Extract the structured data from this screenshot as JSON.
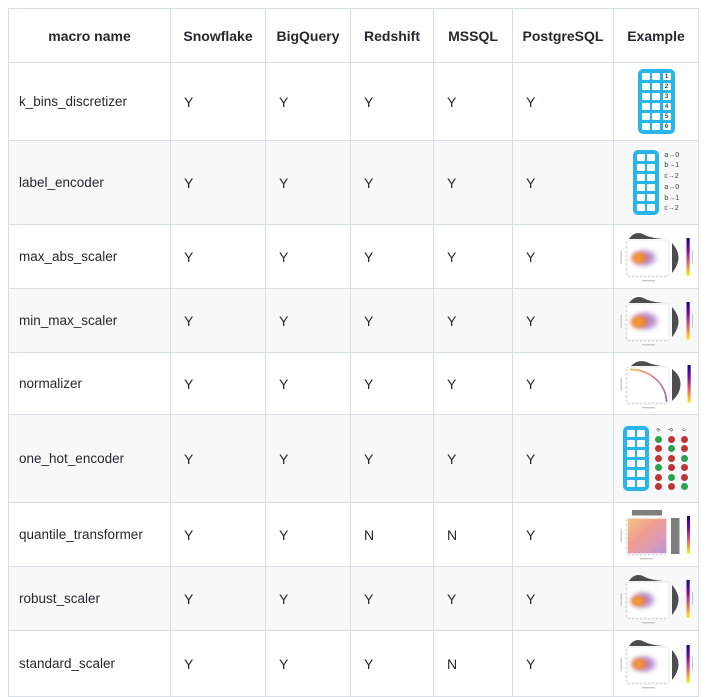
{
  "table": {
    "headers": [
      "macro name",
      "Snowflake",
      "BigQuery",
      "Redshift",
      "MSSQL",
      "PostgreSQL",
      "Example"
    ],
    "rows": [
      {
        "name": "k_bins_discretizer",
        "support": [
          "Y",
          "Y",
          "Y",
          "Y",
          "Y"
        ],
        "example": {
          "kind": "binned-table",
          "grid": {
            "cols": 3,
            "rows": 6,
            "labels": [
              "1",
              "2",
              "3",
              "4",
              "5",
              "6"
            ]
          }
        }
      },
      {
        "name": "label_encoder",
        "support": [
          "Y",
          "Y",
          "Y",
          "Y",
          "Y"
        ],
        "example": {
          "kind": "table-with-label-mapping",
          "grid": {
            "cols": 2,
            "rows": 6
          },
          "mappings": [
            "a→0",
            "b→1",
            "c→2",
            "a→0",
            "b→1",
            "c→2"
          ]
        }
      },
      {
        "name": "max_abs_scaler",
        "support": [
          "Y",
          "Y",
          "Y",
          "Y",
          "Y"
        ],
        "example": {
          "kind": "density-scatter-plot"
        }
      },
      {
        "name": "min_max_scaler",
        "support": [
          "Y",
          "Y",
          "Y",
          "Y",
          "Y"
        ],
        "example": {
          "kind": "density-scatter-plot"
        }
      },
      {
        "name": "normalizer",
        "support": [
          "Y",
          "Y",
          "Y",
          "Y",
          "Y"
        ],
        "example": {
          "kind": "unit-circle-arc-plot"
        }
      },
      {
        "name": "one_hot_encoder",
        "support": [
          "Y",
          "Y",
          "Y",
          "Y",
          "Y"
        ],
        "example": {
          "kind": "table-with-one-hot-dots",
          "grid": {
            "cols": 2,
            "rows": 6
          },
          "dot_headers": [
            "a",
            "b",
            "c"
          ],
          "dot_pattern": [
            [
              1,
              0,
              0
            ],
            [
              0,
              1,
              0
            ],
            [
              0,
              0,
              1
            ],
            [
              1,
              0,
              0
            ],
            [
              0,
              1,
              0
            ],
            [
              0,
              0,
              1
            ]
          ]
        }
      },
      {
        "name": "quantile_transformer",
        "support": [
          "Y",
          "Y",
          "N",
          "N",
          "Y"
        ],
        "example": {
          "kind": "uniform-scatter-plot"
        }
      },
      {
        "name": "robust_scaler",
        "support": [
          "Y",
          "Y",
          "Y",
          "Y",
          "Y"
        ],
        "example": {
          "kind": "density-scatter-plot"
        }
      },
      {
        "name": "standard_scaler",
        "support": [
          "Y",
          "Y",
          "Y",
          "N",
          "Y"
        ],
        "example": {
          "kind": "density-scatter-plot"
        }
      }
    ]
  },
  "colors": {
    "accent_blue": "#29b5e8",
    "dot_green": "#2aa14c",
    "dot_red": "#bf3434",
    "row_stripe": "#f6f8fa",
    "table_border": "#d8dee4",
    "text": "#24292f"
  }
}
